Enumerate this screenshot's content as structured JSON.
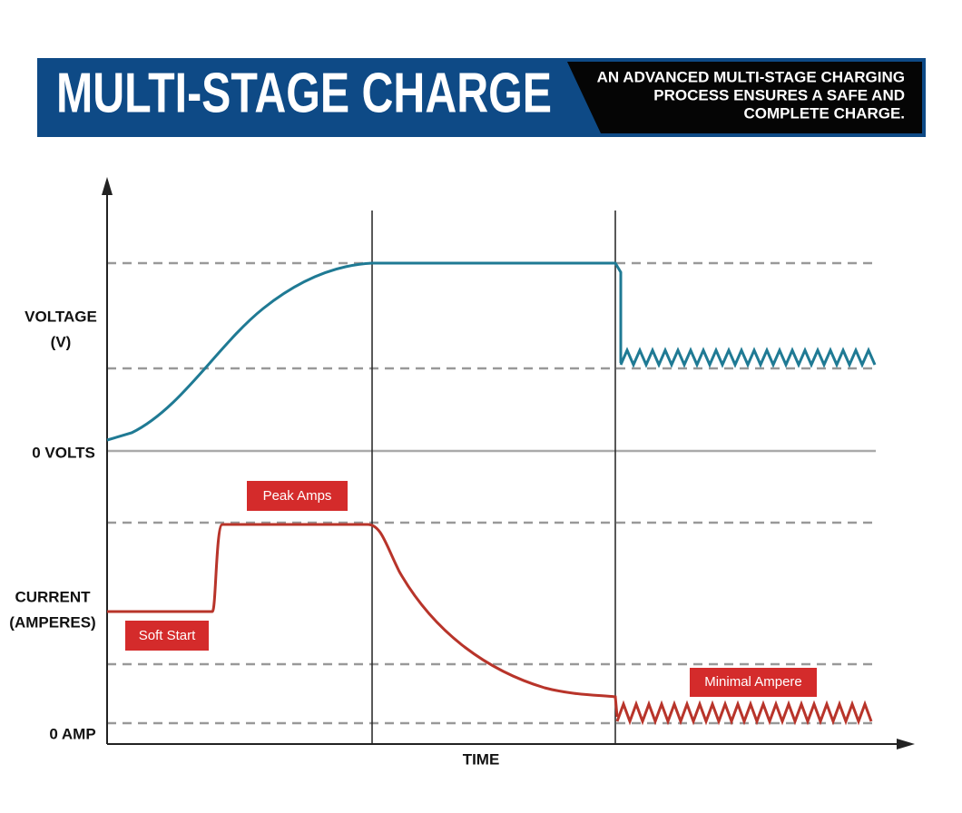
{
  "header": {
    "title": "MULTI-STAGE CHARGE",
    "description": [
      "AN ADVANCED MULTI-STAGE CHARGING",
      "PROCESS ENSURES A SAFE AND",
      "COMPLETE CHARGE."
    ]
  },
  "axes": {
    "voltage_label": [
      "VOLTAGE",
      "(V)"
    ],
    "zero_volts": "0 VOLTS",
    "current_label": [
      "CURRENT",
      "(AMPERES)"
    ],
    "zero_amp": "0 AMP",
    "time_label": "TIME"
  },
  "callouts": {
    "peak": "Peak Amps",
    "soft_start": "Soft Start",
    "minimal": "Minimal Ampere"
  }
}
